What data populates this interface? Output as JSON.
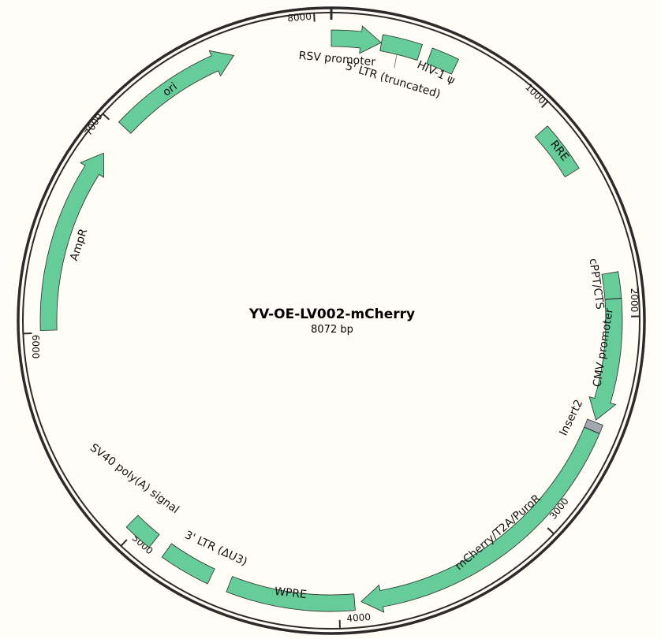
{
  "plasmid": {
    "name": "YV-OE-LV002-mCherry",
    "length_label": "8072 bp",
    "length_bp": 8072
  },
  "colors": {
    "feature": "#66cc99",
    "insert": "#a3a7ae",
    "outline": "#2b2b2b",
    "background": "#fffdf5"
  },
  "ticks": [
    "1000",
    "2000",
    "3000",
    "4000",
    "5000",
    "6000",
    "7000",
    "8000"
  ],
  "features": [
    {
      "label": "RSV promoter",
      "start": 0,
      "end": 228,
      "direction": "forward",
      "arrow": true,
      "kind": "feature"
    },
    {
      "label": "5' LTR (truncated)",
      "start": 229,
      "end": 409,
      "direction": "none",
      "arrow": false,
      "kind": "feature"
    },
    {
      "label": "HIV-1 ψ",
      "start": 456,
      "end": 582,
      "direction": "none",
      "arrow": false,
      "kind": "feature"
    },
    {
      "label": "RRE",
      "start": 1075,
      "end": 1309,
      "direction": "none",
      "arrow": false,
      "kind": "feature"
    },
    {
      "label": "cPPT/CTS",
      "start": 1800,
      "end": 1918,
      "direction": "none",
      "arrow": false,
      "kind": "feature"
    },
    {
      "label": "CMV promoter",
      "start": 1919,
      "end": 2480,
      "direction": "forward",
      "arrow": true,
      "kind": "feature"
    },
    {
      "label": "Insert2",
      "start": 2490,
      "end": 2530,
      "direction": "none",
      "arrow": false,
      "kind": "insert"
    },
    {
      "label": "mCherry/T2A/PuroR",
      "start": 2531,
      "end": 3900,
      "direction": "forward",
      "arrow": true,
      "kind": "feature"
    },
    {
      "label": "WPRE",
      "start": 3930,
      "end": 4510,
      "direction": "none",
      "arrow": false,
      "kind": "feature"
    },
    {
      "label": "3' LTR (ΔU3)",
      "start": 4600,
      "end": 4834,
      "direction": "none",
      "arrow": false,
      "kind": "feature"
    },
    {
      "label": "SV40 poly(A) signal",
      "start": 4905,
      "end": 5040,
      "direction": "none",
      "arrow": false,
      "kind": "feature"
    },
    {
      "label": "AmpR",
      "start": 6010,
      "end": 6870,
      "direction": "forward",
      "arrow": true,
      "kind": "feature"
    },
    {
      "label": "ori",
      "start": 7020,
      "end": 7620,
      "direction": "forward",
      "arrow": true,
      "kind": "feature"
    }
  ]
}
